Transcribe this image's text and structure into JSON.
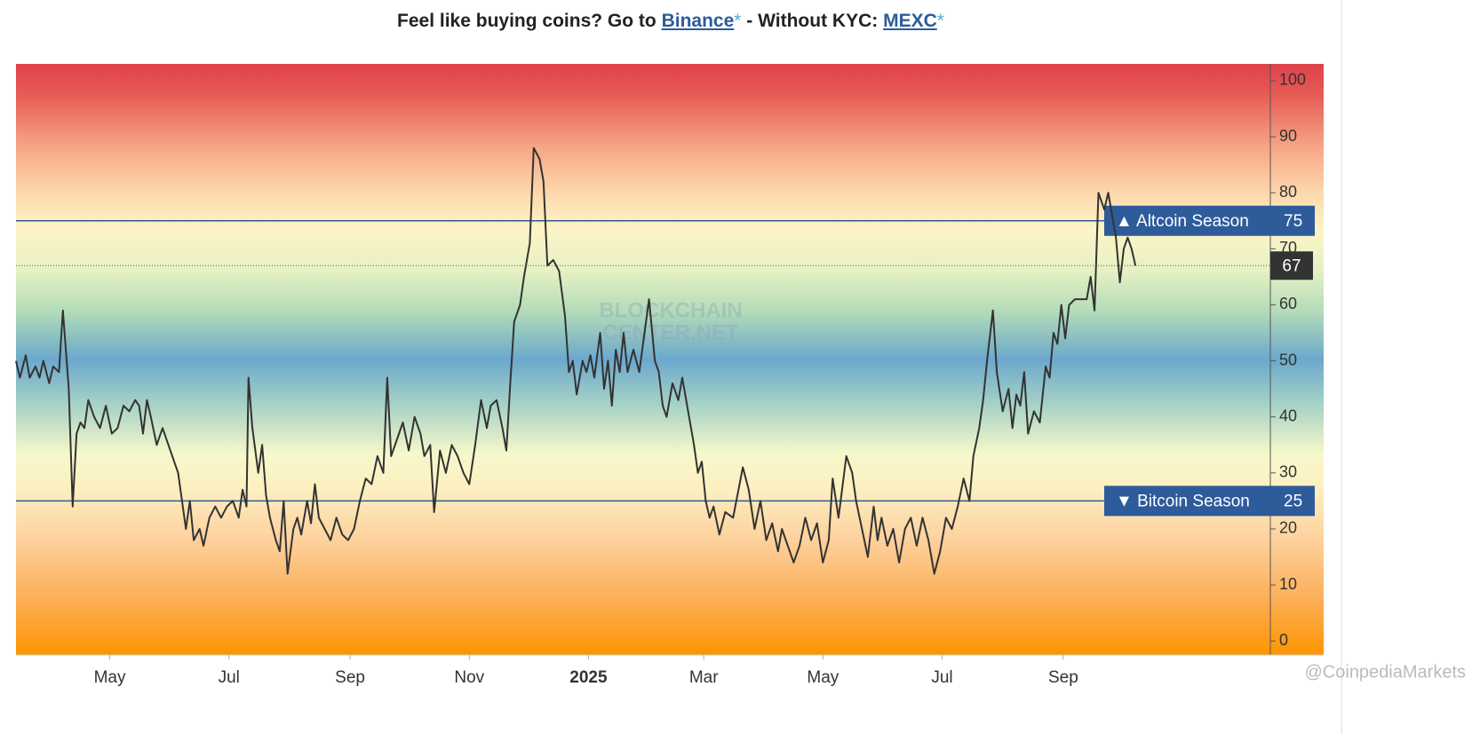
{
  "header": {
    "parts": [
      "Feel like buying coins? Go to ",
      "Binance",
      "*",
      " - Without KYC: ",
      "MEXC",
      "*"
    ]
  },
  "chart_data": {
    "type": "line",
    "color": "#333333",
    "x": [
      0,
      2,
      5,
      7,
      10,
      12,
      14,
      17,
      19,
      22,
      24,
      27,
      29,
      31,
      33,
      35,
      37,
      40,
      43,
      46,
      49,
      52,
      55,
      58,
      61,
      63,
      65,
      67,
      69,
      72,
      75,
      78,
      81,
      83,
      85,
      87,
      89,
      91,
      94,
      96,
      99,
      102,
      105,
      108,
      111,
      114,
      116,
      118,
      119,
      121,
      124,
      126,
      128,
      130,
      133,
      135,
      137,
      139,
      142,
      144,
      146,
      149,
      151,
      153,
      155,
      158,
      161,
      164,
      167,
      170,
      173,
      176,
      179,
      182,
      185,
      188,
      190,
      192,
      195,
      198,
      201,
      204,
      207,
      209,
      212,
      214,
      217,
      220,
      223,
      226,
      229,
      232,
      235,
      238,
      241,
      243,
      246,
      249,
      251,
      253,
      255,
      258,
      260,
      263,
      265,
      268,
      270,
      272,
      275,
      278,
      281,
      283,
      285,
      287,
      290,
      292,
      294,
      296,
      299,
      301,
      303,
      305,
      307,
      309,
      311,
      313,
      316,
      319,
      324,
      327,
      329,
      331,
      333,
      336,
      339,
      341,
      343,
      345,
      347,
      349,
      351,
      353,
      355,
      357,
      360,
      363,
      367,
      372,
      375,
      378,
      381,
      384,
      387,
      390,
      392,
      395,
      398,
      401,
      404,
      407,
      410,
      413,
      416,
      418,
      421,
      425,
      428,
      430,
      433,
      436,
      439,
      441,
      443,
      446,
      449,
      452,
      455,
      458,
      461,
      464,
      467,
      470,
      473,
      476,
      479,
      482,
      485,
      488,
      490,
      493,
      495,
      497,
      500,
      502,
      505,
      508,
      510,
      512,
      514,
      516,
      518,
      521,
      524,
      527,
      529,
      531,
      533,
      535,
      537,
      539,
      542,
      545,
      548,
      550,
      552,
      554,
      557,
      559,
      561,
      563,
      565,
      567,
      569,
      571,
      573
    ],
    "values": [
      50,
      47,
      51,
      47,
      49,
      47,
      50,
      46,
      49,
      48,
      59,
      45,
      24,
      37,
      39,
      38,
      43,
      40,
      38,
      42,
      37,
      38,
      42,
      41,
      43,
      42,
      37,
      43,
      40,
      35,
      38,
      35,
      32,
      30,
      25,
      20,
      25,
      18,
      20,
      17,
      22,
      24,
      22,
      24,
      25,
      22,
      27,
      24,
      47,
      38,
      30,
      35,
      26,
      22,
      18,
      16,
      25,
      12,
      20,
      22,
      19,
      25,
      21,
      28,
      22,
      20,
      18,
      22,
      19,
      18,
      20,
      25,
      29,
      28,
      33,
      30,
      47,
      33,
      36,
      39,
      34,
      40,
      37,
      33,
      35,
      23,
      34,
      30,
      35,
      33,
      30,
      28,
      35,
      43,
      38,
      42,
      43,
      38,
      34,
      46,
      57,
      60,
      65,
      71,
      88,
      86,
      82,
      67,
      68,
      66,
      58,
      48,
      50,
      44,
      50,
      48,
      51,
      47,
      55,
      45,
      50,
      42,
      52,
      48,
      55,
      48,
      52,
      48,
      61,
      50,
      48,
      42,
      40,
      46,
      43,
      47,
      43,
      39,
      35,
      30,
      32,
      25,
      22,
      24,
      19,
      23,
      22,
      31,
      27,
      20,
      25,
      18,
      21,
      16,
      20,
      17,
      14,
      17,
      22,
      18,
      21,
      14,
      18,
      29,
      22,
      33,
      30,
      25,
      20,
      15,
      24,
      18,
      22,
      17,
      20,
      14,
      20,
      22,
      17,
      22,
      18,
      12,
      16,
      22,
      20,
      24,
      29,
      25,
      33,
      38,
      43,
      50,
      59,
      48,
      41,
      45,
      38,
      44,
      42,
      48,
      37,
      41,
      39,
      49,
      47,
      55,
      53,
      60,
      54,
      60,
      61,
      61,
      61,
      65,
      59,
      80,
      77,
      80,
      76,
      72,
      64,
      70,
      72,
      70,
      67
    ],
    "xlim": [
      0,
      642
    ],
    "xticks": [
      {
        "value": 48,
        "label": "May"
      },
      {
        "value": 109,
        "label": "Jul"
      },
      {
        "value": 171,
        "label": "Sep"
      },
      {
        "value": 232,
        "label": "Nov"
      },
      {
        "value": 293,
        "label": "2025"
      },
      {
        "value": 352,
        "label": "Mar"
      },
      {
        "value": 413,
        "label": "May"
      },
      {
        "value": 474,
        "label": "Jul"
      },
      {
        "value": 536,
        "label": "Sep"
      }
    ],
    "ylim": [
      -2.5,
      103
    ],
    "yticks": [
      0,
      10,
      20,
      30,
      40,
      50,
      60,
      70,
      80,
      90,
      100
    ],
    "annotations": [
      {
        "label": "▲ Altcoin Season",
        "value": 75,
        "color": "#2e5b9a"
      },
      {
        "label": "▼ Bitcoin Season",
        "value": 25,
        "color": "#2e5b9a"
      }
    ],
    "watermark": [
      "BLOCKCHAIN",
      "CENTER.NET"
    ],
    "credit": "@CoinpediaMarkets"
  }
}
